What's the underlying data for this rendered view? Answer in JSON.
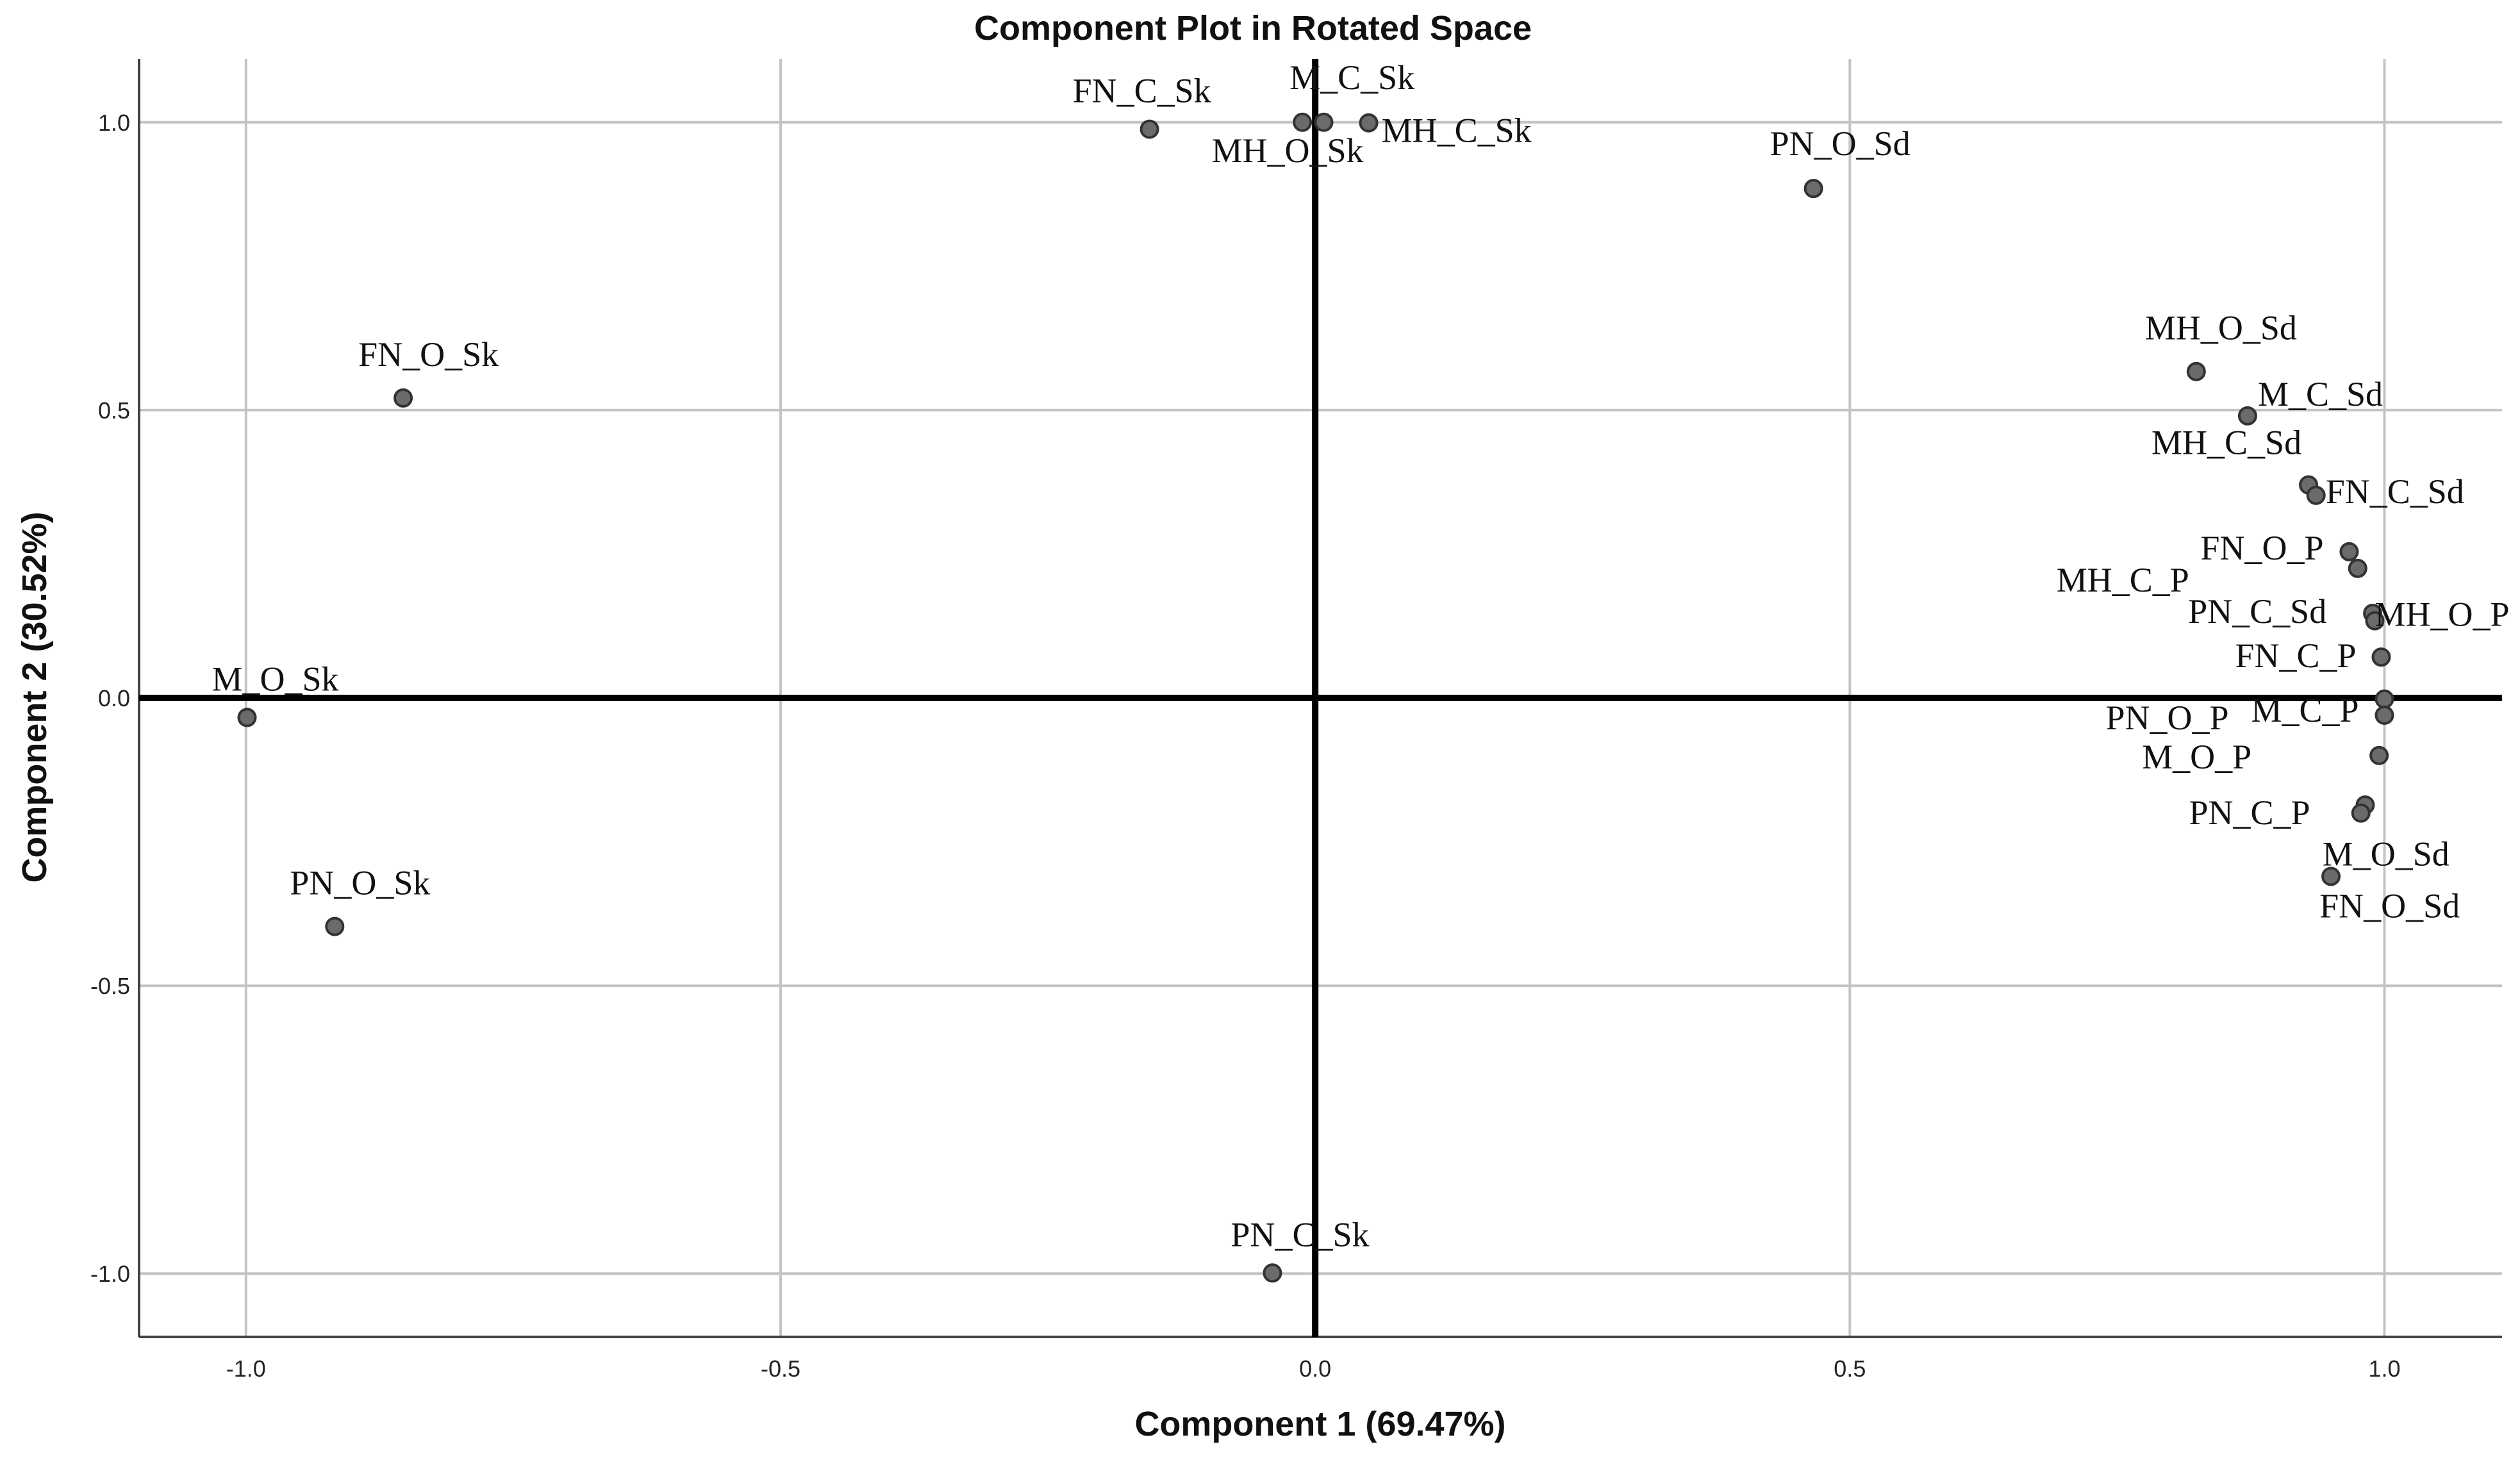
{
  "chart_data": {
    "type": "scatter",
    "title": "Component Plot in Rotated Space",
    "xlabel": "Component 1 (69.47%)",
    "ylabel": "Component 2 (30.52%)",
    "xlim": [
      -1.1,
      1.11
    ],
    "ylim": [
      -1.11,
      1.11
    ],
    "xticks": [
      -1.0,
      -0.5,
      0.0,
      0.5,
      1.0
    ],
    "yticks": [
      -1.0,
      -0.5,
      0.0,
      0.5,
      1.0
    ],
    "xtick_labels": [
      "-1.0",
      "-0.5",
      "0.0",
      "0.5",
      "1.0"
    ],
    "ytick_labels": [
      "-1.0",
      "-0.5",
      "0.0",
      "0.5",
      "1.0"
    ],
    "grid": true,
    "reference_lines": {
      "x": 0,
      "y": 0
    },
    "point_color": "#6b6b6b",
    "points": [
      {
        "label": "FN_C_Sk",
        "x": -0.155,
        "y": 0.988
      },
      {
        "label": "M_C_Sk",
        "x": -0.012,
        "y": 1.0
      },
      {
        "label": "MH_C_Sk",
        "x": 0.05,
        "y": 0.999
      },
      {
        "label": "MH_O_Sk",
        "x": 0.008,
        "y": 1.0
      },
      {
        "label": "PN_O_Sd",
        "x": 0.466,
        "y": 0.885
      },
      {
        "label": "FN_O_Sk",
        "x": -0.853,
        "y": 0.521
      },
      {
        "label": "M_O_Sk",
        "x": -0.999,
        "y": -0.034
      },
      {
        "label": "PN_O_Sk",
        "x": -0.917,
        "y": -0.397
      },
      {
        "label": "PN_C_Sk",
        "x": -0.04,
        "y": -0.999
      },
      {
        "label": "MH_O_Sd",
        "x": 0.824,
        "y": 0.567
      },
      {
        "label": "M_C_Sd",
        "x": 0.872,
        "y": 0.49
      },
      {
        "label": "MH_C_Sd",
        "x": 0.929,
        "y": 0.37
      },
      {
        "label": "FN_C_Sd",
        "x": 0.936,
        "y": 0.352
      },
      {
        "label": "FN_O_P",
        "x": 0.967,
        "y": 0.254
      },
      {
        "label": "MH_C_P",
        "x": 0.975,
        "y": 0.225
      },
      {
        "label": "PN_C_Sd",
        "x": 0.989,
        "y": 0.147
      },
      {
        "label": "MH_O_P",
        "x": 0.991,
        "y": 0.134
      },
      {
        "label": "FN_C_P",
        "x": 0.997,
        "y": 0.071
      },
      {
        "label": "M_C_P",
        "x": 1.0,
        "y": -0.002
      },
      {
        "label": "PN_O_P",
        "x": 1.0,
        "y": -0.03
      },
      {
        "label": "M_O_P",
        "x": 0.995,
        "y": -0.1
      },
      {
        "label": "PN_C_P",
        "x": 0.982,
        "y": -0.186
      },
      {
        "label": "M_O_Sd",
        "x": 0.978,
        "y": -0.2
      },
      {
        "label": "FN_O_Sd",
        "x": 0.95,
        "y": -0.31
      }
    ]
  }
}
